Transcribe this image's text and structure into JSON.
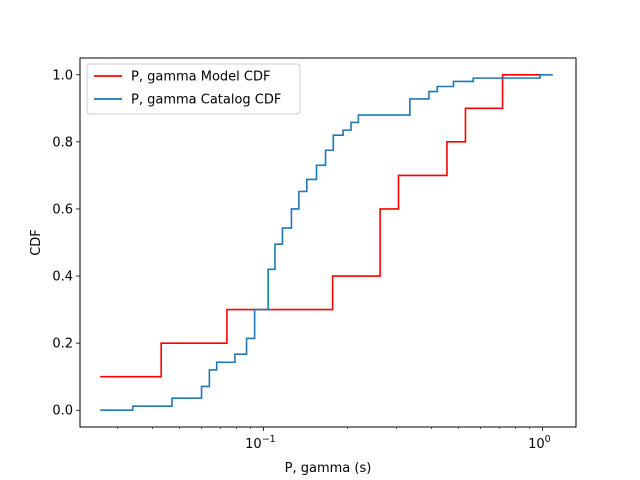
{
  "chart_data": {
    "type": "line",
    "step": "post",
    "xscale": "log",
    "xlabel": "P, gamma (s)",
    "ylabel": "CDF",
    "xlim": [
      0.022,
      1.32
    ],
    "ylim": [
      -0.05,
      1.05
    ],
    "x_major_ticks": [
      {
        "value": 0.1,
        "base": "10",
        "exp": "−1"
      },
      {
        "value": 1.0,
        "base": "10",
        "exp": "0"
      }
    ],
    "yticks": [
      "0.0",
      "0.2",
      "0.4",
      "0.6",
      "0.8",
      "1.0"
    ],
    "legend_position": "upper-left",
    "series": [
      {
        "name": "P, gamma Model CDF",
        "color": "#ff0000",
        "x": [
          0.026,
          0.043,
          0.074,
          0.177,
          0.262,
          0.305,
          0.455,
          0.53,
          0.72,
          1.0
        ],
        "y": [
          0.1,
          0.2,
          0.3,
          0.4,
          0.6,
          0.7,
          0.8,
          0.9,
          1.0,
          1.0
        ]
      },
      {
        "name": "P, gamma Catalog CDF",
        "color": "#1f77b4",
        "x": [
          0.026,
          0.034,
          0.047,
          0.06,
          0.064,
          0.068,
          0.079,
          0.087,
          0.093,
          0.104,
          0.11,
          0.117,
          0.126,
          0.134,
          0.143,
          0.155,
          0.167,
          0.178,
          0.193,
          0.206,
          0.219,
          0.233,
          0.335,
          0.392,
          0.42,
          0.48,
          0.565,
          0.665,
          0.98,
          1.09
        ],
        "y": [
          0.0,
          0.012,
          0.036,
          0.071,
          0.12,
          0.143,
          0.167,
          0.214,
          0.3,
          0.42,
          0.495,
          0.543,
          0.6,
          0.652,
          0.688,
          0.73,
          0.775,
          0.82,
          0.835,
          0.858,
          0.88,
          0.88,
          0.928,
          0.95,
          0.965,
          0.98,
          0.99,
          0.99,
          1.0,
          1.0
        ]
      }
    ]
  }
}
